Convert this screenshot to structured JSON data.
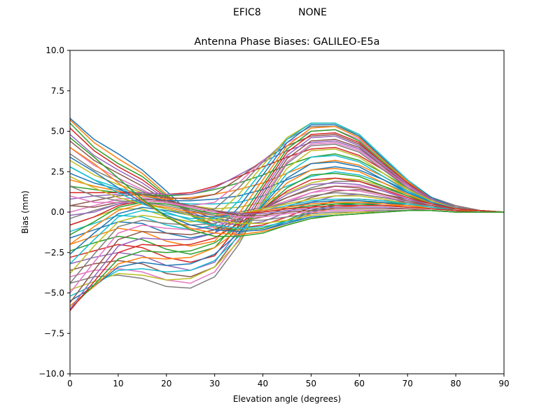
{
  "suptitle": {
    "left": "EFIC8",
    "right": "NONE"
  },
  "chart_data": {
    "type": "line",
    "title": "Antenna Phase Biases: GALILEO-E5a",
    "xlabel": "Elevation angle (degrees)",
    "ylabel": "Bias (mm)",
    "xlim": [
      0,
      90
    ],
    "ylim": [
      -10,
      10
    ],
    "xticks": [
      0,
      10,
      20,
      30,
      40,
      50,
      60,
      70,
      80,
      90
    ],
    "yticks": [
      -10.0,
      -7.5,
      -5.0,
      -2.5,
      0.0,
      2.5,
      5.0,
      7.5,
      10.0
    ],
    "ytick_labels": [
      "−10.0",
      "−7.5",
      "−5.0",
      "−2.5",
      "0.0",
      "2.5",
      "5.0",
      "7.5",
      "10.0"
    ],
    "grid": false,
    "legend": "none",
    "x": [
      0,
      5,
      10,
      15,
      20,
      25,
      30,
      35,
      40,
      45,
      50,
      55,
      60,
      65,
      70,
      75,
      80,
      85,
      90
    ],
    "series": [
      {
        "values": [
          5.8,
          4.5,
          3.6,
          2.6,
          1.3,
          -0.1,
          -0.9,
          -1.2,
          -1.1,
          -0.6,
          0.0,
          0.4,
          0.5,
          0.5,
          0.5,
          0.3,
          0.2,
          0.1,
          0.0
        ]
      },
      {
        "values": [
          5.7,
          4.3,
          3.3,
          2.4,
          1.1,
          -0.2,
          -1.0,
          -1.2,
          -1.1,
          -0.7,
          -0.1,
          0.3,
          0.4,
          0.4,
          0.4,
          0.3,
          0.1,
          0.1,
          0.0
        ]
      },
      {
        "values": [
          5.5,
          4.0,
          3.0,
          2.2,
          1.0,
          -0.2,
          -0.9,
          -1.1,
          -1.0,
          -0.5,
          0.1,
          0.5,
          0.6,
          0.6,
          0.5,
          0.3,
          0.2,
          0.1,
          0.0
        ]
      },
      {
        "values": [
          5.2,
          3.8,
          2.8,
          2.0,
          0.9,
          -0.1,
          -0.8,
          -1.0,
          -0.8,
          -0.3,
          0.3,
          0.7,
          0.8,
          0.7,
          0.6,
          0.4,
          0.2,
          0.1,
          0.0
        ]
      },
      {
        "values": [
          4.8,
          3.5,
          2.6,
          1.8,
          0.8,
          0.0,
          -0.6,
          -0.8,
          -0.6,
          0.0,
          0.6,
          1.0,
          1.1,
          0.9,
          0.7,
          0.4,
          0.2,
          0.1,
          0.0
        ]
      },
      {
        "values": [
          4.4,
          3.2,
          2.4,
          1.6,
          0.7,
          0.1,
          -0.4,
          -0.6,
          -0.3,
          0.3,
          0.9,
          1.3,
          1.4,
          1.1,
          0.8,
          0.5,
          0.2,
          0.1,
          0.0
        ]
      },
      {
        "values": [
          4.0,
          2.9,
          2.1,
          1.4,
          0.6,
          0.2,
          -0.2,
          -0.3,
          0.0,
          0.6,
          1.2,
          1.6,
          1.6,
          1.3,
          0.9,
          0.5,
          0.3,
          0.1,
          0.0
        ]
      },
      {
        "values": [
          3.6,
          2.6,
          1.9,
          1.3,
          0.6,
          0.3,
          0.0,
          0.0,
          0.3,
          0.9,
          1.5,
          1.9,
          1.9,
          1.5,
          1.0,
          0.6,
          0.3,
          0.1,
          0.0
        ]
      },
      {
        "values": [
          3.2,
          2.3,
          1.7,
          1.2,
          0.6,
          0.4,
          0.2,
          0.3,
          0.6,
          1.2,
          1.8,
          2.1,
          2.0,
          1.6,
          1.1,
          0.6,
          0.3,
          0.1,
          0.0
        ]
      },
      {
        "values": [
          2.8,
          2.0,
          1.5,
          1.1,
          0.6,
          0.5,
          0.5,
          0.6,
          1.0,
          1.6,
          2.2,
          2.5,
          2.3,
          1.8,
          1.2,
          0.7,
          0.3,
          0.1,
          0.0
        ]
      },
      {
        "values": [
          2.4,
          1.8,
          1.4,
          1.0,
          0.7,
          0.7,
          0.8,
          1.0,
          1.4,
          2.0,
          2.6,
          2.8,
          2.6,
          2.0,
          1.3,
          0.7,
          0.3,
          0.1,
          0.0
        ]
      },
      {
        "values": [
          2.0,
          1.6,
          1.3,
          1.0,
          0.8,
          0.9,
          1.1,
          1.4,
          1.8,
          2.4,
          3.0,
          3.2,
          2.9,
          2.2,
          1.4,
          0.8,
          0.4,
          0.1,
          0.0
        ]
      },
      {
        "values": [
          1.6,
          1.4,
          1.2,
          1.1,
          1.0,
          1.1,
          1.4,
          1.8,
          2.3,
          2.9,
          3.4,
          3.6,
          3.2,
          2.4,
          1.5,
          0.8,
          0.4,
          0.1,
          0.0
        ]
      },
      {
        "values": [
          1.2,
          1.2,
          1.2,
          1.2,
          1.1,
          1.2,
          1.6,
          2.2,
          2.8,
          3.4,
          3.9,
          4.0,
          3.5,
          2.6,
          1.6,
          0.8,
          0.4,
          0.1,
          0.0
        ]
      },
      {
        "values": [
          0.8,
          1.0,
          1.1,
          1.2,
          1.1,
          1.1,
          1.5,
          2.3,
          3.1,
          3.8,
          4.3,
          4.4,
          3.9,
          2.8,
          1.7,
          0.9,
          0.4,
          0.1,
          0.0
        ]
      },
      {
        "values": [
          0.4,
          0.7,
          1.0,
          1.1,
          0.9,
          0.8,
          1.1,
          2.1,
          3.2,
          4.1,
          4.7,
          4.8,
          4.2,
          3.0,
          1.8,
          0.9,
          0.4,
          0.1,
          0.0
        ]
      },
      {
        "values": [
          0.0,
          0.4,
          0.8,
          0.9,
          0.6,
          0.4,
          0.6,
          1.8,
          3.2,
          4.3,
          5.0,
          5.1,
          4.5,
          3.2,
          1.9,
          0.9,
          0.4,
          0.1,
          0.0
        ]
      },
      {
        "values": [
          -0.4,
          0.1,
          0.5,
          0.6,
          0.2,
          -0.1,
          0.2,
          1.5,
          3.1,
          4.5,
          5.3,
          5.3,
          4.6,
          3.3,
          1.9,
          0.9,
          0.4,
          0.1,
          0.0
        ]
      },
      {
        "values": [
          -0.8,
          -0.3,
          0.2,
          0.2,
          -0.3,
          -0.6,
          -0.3,
          1.1,
          2.9,
          4.6,
          5.5,
          5.5,
          4.7,
          3.3,
          1.9,
          0.9,
          0.3,
          0.1,
          0.0
        ]
      },
      {
        "values": [
          -1.2,
          -0.7,
          -0.2,
          -0.3,
          -0.8,
          -1.1,
          -0.8,
          0.7,
          2.6,
          4.5,
          5.5,
          5.5,
          4.8,
          3.4,
          2.0,
          0.9,
          0.3,
          0.1,
          0.0
        ]
      },
      {
        "values": [
          -1.6,
          -1.1,
          -0.6,
          -0.7,
          -1.3,
          -1.6,
          -1.3,
          0.3,
          2.3,
          4.3,
          5.4,
          5.4,
          4.7,
          3.3,
          1.9,
          0.9,
          0.3,
          0.1,
          0.0
        ]
      },
      {
        "values": [
          -2.0,
          -1.5,
          -1.0,
          -1.2,
          -1.8,
          -2.1,
          -1.8,
          -0.1,
          2.0,
          4.1,
          5.2,
          5.3,
          4.6,
          3.2,
          1.9,
          0.8,
          0.3,
          0.1,
          0.0
        ]
      },
      {
        "values": [
          -2.4,
          -1.9,
          -1.5,
          -1.7,
          -2.3,
          -2.6,
          -2.2,
          -0.5,
          1.7,
          3.9,
          5.0,
          5.1,
          4.4,
          3.1,
          1.8,
          0.8,
          0.3,
          0.1,
          0.0
        ]
      },
      {
        "values": [
          -2.8,
          -2.4,
          -2.0,
          -2.2,
          -2.8,
          -3.1,
          -2.7,
          -0.8,
          1.5,
          3.7,
          4.8,
          4.9,
          4.3,
          3.0,
          1.8,
          0.8,
          0.3,
          0.1,
          0.0
        ]
      },
      {
        "values": [
          -3.2,
          -2.8,
          -2.5,
          -2.7,
          -3.3,
          -3.6,
          -3.1,
          -1.1,
          1.3,
          3.5,
          4.6,
          4.7,
          4.1,
          2.9,
          1.7,
          0.8,
          0.3,
          0.1,
          0.0
        ]
      },
      {
        "values": [
          -3.6,
          -3.2,
          -3.0,
          -3.2,
          -3.8,
          -4.0,
          -3.4,
          -1.4,
          1.1,
          3.3,
          4.4,
          4.5,
          4.0,
          2.8,
          1.6,
          0.7,
          0.3,
          0.1,
          0.0
        ]
      },
      {
        "values": [
          -4.0,
          -3.6,
          -3.5,
          -3.7,
          -4.2,
          -4.4,
          -3.7,
          -1.7,
          0.9,
          3.1,
          4.2,
          4.3,
          3.8,
          2.7,
          1.6,
          0.7,
          0.3,
          0.1,
          0.0
        ]
      },
      {
        "values": [
          -4.4,
          -4.0,
          -3.9,
          -4.1,
          -4.6,
          -4.7,
          -4.0,
          -2.0,
          0.7,
          3.0,
          4.1,
          4.2,
          3.7,
          2.6,
          1.5,
          0.7,
          0.3,
          0.1,
          0.0
        ]
      },
      {
        "values": [
          -4.8,
          -4.3,
          -3.8,
          -3.9,
          -4.2,
          -4.1,
          -3.4,
          -1.8,
          0.6,
          2.7,
          3.8,
          3.9,
          3.4,
          2.4,
          1.4,
          0.7,
          0.2,
          0.1,
          0.0
        ]
      },
      {
        "values": [
          -5.2,
          -4.5,
          -3.6,
          -3.5,
          -3.7,
          -3.6,
          -3.0,
          -1.5,
          0.5,
          2.4,
          3.4,
          3.5,
          3.1,
          2.2,
          1.3,
          0.6,
          0.2,
          0.1,
          0.0
        ]
      },
      {
        "values": [
          -5.5,
          -4.6,
          -3.4,
          -3.1,
          -3.3,
          -3.2,
          -2.6,
          -1.3,
          0.4,
          2.1,
          3.0,
          3.1,
          2.8,
          2.0,
          1.2,
          0.6,
          0.2,
          0.1,
          0.0
        ]
      },
      {
        "values": [
          -5.8,
          -4.6,
          -3.2,
          -2.8,
          -2.9,
          -2.8,
          -2.2,
          -1.1,
          0.3,
          1.8,
          2.6,
          2.7,
          2.5,
          1.8,
          1.1,
          0.5,
          0.2,
          0.1,
          0.0
        ]
      },
      {
        "values": [
          -6.0,
          -4.5,
          -2.9,
          -2.4,
          -2.5,
          -2.4,
          -1.9,
          -0.9,
          0.2,
          1.5,
          2.3,
          2.4,
          2.2,
          1.6,
          1.0,
          0.5,
          0.2,
          0.1,
          0.0
        ]
      },
      {
        "values": [
          -6.1,
          -4.3,
          -2.5,
          -2.0,
          -2.1,
          -2.0,
          -1.6,
          -0.7,
          0.2,
          1.3,
          2.0,
          2.1,
          1.9,
          1.4,
          0.9,
          0.5,
          0.2,
          0.1,
          0.0
        ]
      },
      {
        "values": [
          -6.0,
          -4.0,
          -2.1,
          -1.6,
          -1.7,
          -1.7,
          -1.3,
          -0.5,
          0.2,
          1.1,
          1.7,
          1.8,
          1.7,
          1.3,
          0.8,
          0.4,
          0.1,
          0.0,
          0.0
        ]
      },
      {
        "values": [
          -5.6,
          -3.6,
          -1.7,
          -1.2,
          -1.3,
          -1.4,
          -1.1,
          -0.4,
          0.2,
          0.9,
          1.4,
          1.6,
          1.5,
          1.1,
          0.7,
          0.4,
          0.1,
          0.0,
          0.0
        ]
      },
      {
        "values": [
          -5.0,
          -3.1,
          -1.3,
          -0.8,
          -1.0,
          -1.1,
          -0.9,
          -0.3,
          0.2,
          0.7,
          1.2,
          1.4,
          1.3,
          1.0,
          0.6,
          0.3,
          0.1,
          0.0,
          0.0
        ]
      },
      {
        "values": [
          -4.4,
          -2.6,
          -0.9,
          -0.5,
          -0.7,
          -0.8,
          -0.7,
          -0.2,
          0.2,
          0.6,
          1.0,
          1.2,
          1.1,
          0.9,
          0.6,
          0.3,
          0.1,
          0.0,
          0.0
        ]
      },
      {
        "values": [
          -3.8,
          -2.1,
          -0.6,
          -0.2,
          -0.4,
          -0.6,
          -0.5,
          -0.1,
          0.2,
          0.5,
          0.8,
          1.0,
          1.0,
          0.8,
          0.5,
          0.3,
          0.1,
          0.0,
          0.0
        ]
      },
      {
        "values": [
          -3.2,
          -1.7,
          -0.3,
          0.1,
          -0.1,
          -0.4,
          -0.4,
          -0.1,
          0.1,
          0.4,
          0.7,
          0.8,
          0.8,
          0.7,
          0.5,
          0.3,
          0.1,
          0.0,
          0.0
        ]
      },
      {
        "values": [
          -2.6,
          -1.3,
          -0.1,
          0.3,
          0.1,
          -0.2,
          -0.3,
          -0.1,
          0.1,
          0.3,
          0.6,
          0.7,
          0.7,
          0.6,
          0.4,
          0.2,
          0.1,
          0.0,
          0.0
        ]
      },
      {
        "values": [
          -2.0,
          -0.9,
          0.1,
          0.5,
          0.3,
          0.0,
          -0.2,
          -0.1,
          0.1,
          0.3,
          0.5,
          0.6,
          0.6,
          0.5,
          0.4,
          0.2,
          0.1,
          0.0,
          0.0
        ]
      },
      {
        "values": [
          -1.4,
          -0.6,
          0.3,
          0.6,
          0.5,
          0.2,
          -0.1,
          -0.1,
          0.0,
          0.2,
          0.4,
          0.5,
          0.5,
          0.4,
          0.3,
          0.2,
          0.1,
          0.0,
          0.0
        ]
      },
      {
        "values": [
          -0.8,
          -0.3,
          0.4,
          0.7,
          0.6,
          0.3,
          0.0,
          -0.1,
          0.0,
          0.2,
          0.3,
          0.4,
          0.4,
          0.4,
          0.3,
          0.2,
          0.1,
          0.0,
          0.0
        ]
      },
      {
        "values": [
          -0.2,
          0.0,
          0.5,
          0.8,
          0.7,
          0.4,
          0.1,
          -0.1,
          -0.1,
          0.1,
          0.2,
          0.3,
          0.3,
          0.3,
          0.2,
          0.1,
          0.0,
          0.0,
          0.0
        ]
      },
      {
        "values": [
          0.4,
          0.3,
          0.6,
          0.8,
          0.7,
          0.4,
          0.1,
          -0.2,
          -0.2,
          0.0,
          0.1,
          0.2,
          0.2,
          0.2,
          0.2,
          0.1,
          0.0,
          0.0,
          0.0
        ]
      },
      {
        "values": [
          1.0,
          0.6,
          0.6,
          0.7,
          0.6,
          0.3,
          0.0,
          -0.3,
          -0.3,
          -0.1,
          0.0,
          0.1,
          0.1,
          0.1,
          0.1,
          0.1,
          0.0,
          0.0,
          0.0
        ]
      },
      {
        "values": [
          1.6,
          1.0,
          0.7,
          0.6,
          0.4,
          0.1,
          -0.2,
          -0.5,
          -0.5,
          -0.3,
          -0.1,
          0.0,
          0.0,
          0.1,
          0.1,
          0.1,
          0.0,
          0.0,
          0.0
        ]
      },
      {
        "values": [
          2.2,
          1.5,
          0.9,
          0.5,
          0.2,
          -0.2,
          -0.5,
          -0.7,
          -0.7,
          -0.5,
          -0.2,
          -0.1,
          0.0,
          0.0,
          0.1,
          0.1,
          0.0,
          0.0,
          0.0
        ]
      },
      {
        "values": [
          2.8,
          2.0,
          1.2,
          0.5,
          0.0,
          -0.5,
          -0.8,
          -1.0,
          -0.9,
          -0.6,
          -0.3,
          -0.2,
          -0.1,
          0.0,
          0.1,
          0.1,
          0.0,
          0.0,
          0.0
        ]
      },
      {
        "values": [
          3.4,
          2.5,
          1.5,
          0.6,
          -0.2,
          -0.8,
          -1.1,
          -1.2,
          -1.1,
          -0.7,
          -0.3,
          -0.2,
          -0.1,
          0.0,
          0.1,
          0.1,
          0.0,
          0.0,
          0.0
        ]
      },
      {
        "values": [
          4.0,
          3.0,
          1.8,
          0.7,
          -0.3,
          -1.0,
          -1.3,
          -1.4,
          -1.2,
          -0.8,
          -0.4,
          -0.2,
          -0.1,
          0.0,
          0.1,
          0.1,
          0.0,
          0.0,
          0.0
        ]
      },
      {
        "values": [
          4.6,
          3.4,
          2.1,
          0.8,
          -0.3,
          -1.1,
          -1.5,
          -1.5,
          -1.3,
          -0.8,
          -0.4,
          -0.2,
          -0.1,
          0.0,
          0.1,
          0.1,
          0.0,
          0.0,
          0.0
        ]
      }
    ]
  },
  "colors": {
    "cycle": [
      "#1f77b4",
      "#ff7f0e",
      "#2ca02c",
      "#d62728",
      "#9467bd",
      "#8c564b",
      "#e377c2",
      "#7f7f7f",
      "#bcbd22",
      "#17becf"
    ]
  }
}
